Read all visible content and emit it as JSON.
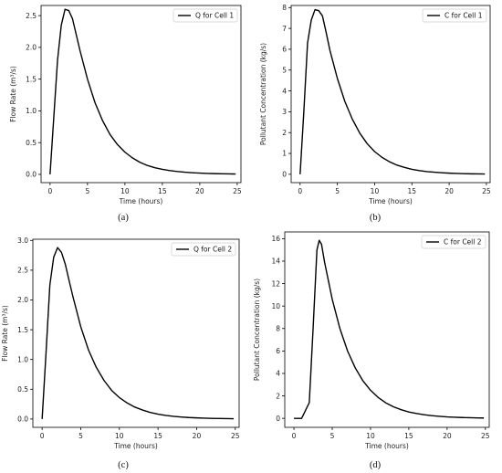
{
  "chart_data": [
    {
      "type": "line",
      "xlabel": "Time (hours)",
      "ylabel": "Flow Rate (m³/s)",
      "xlim": [
        -1.2,
        25.5
      ],
      "ylim": [
        -0.13,
        2.66
      ],
      "xticks": [
        "0",
        "5",
        "10",
        "15",
        "20",
        "25"
      ],
      "yticks": [
        "0.0",
        "0.5",
        "1.0",
        "1.5",
        "2.0",
        "2.5"
      ],
      "legend_position": "top-right",
      "caption": "(a)",
      "series": [
        {
          "name": "Q for Cell 1",
          "x": [
            0,
            0.5,
            1.0,
            1.5,
            2.0,
            2.5,
            3.0,
            3.5,
            4.0,
            5.0,
            6.0,
            7.0,
            8.0,
            9.0,
            10.0,
            11.0,
            12.0,
            13.0,
            14.0,
            15.0,
            16.0,
            17.0,
            18.0,
            19.0,
            20.0,
            21.0,
            22.0,
            23.0,
            24.0,
            24.8
          ],
          "y": [
            0.0,
            0.9,
            1.8,
            2.35,
            2.6,
            2.58,
            2.45,
            2.2,
            1.95,
            1.5,
            1.13,
            0.85,
            0.63,
            0.47,
            0.35,
            0.26,
            0.19,
            0.14,
            0.105,
            0.08,
            0.06,
            0.045,
            0.034,
            0.026,
            0.02,
            0.015,
            0.012,
            0.009,
            0.007,
            0.006
          ]
        }
      ]
    },
    {
      "type": "line",
      "xlabel": "Time (hours)",
      "ylabel": "Pollutant Concentration (kg/s)",
      "xlim": [
        -1.2,
        25.5
      ],
      "ylim": [
        -0.4,
        8.1
      ],
      "xticks": [
        "0",
        "5",
        "10",
        "15",
        "20",
        "25"
      ],
      "yticks": [
        "0",
        "1",
        "2",
        "3",
        "4",
        "5",
        "6",
        "7",
        "8"
      ],
      "legend_position": "top-right",
      "caption": "(b)",
      "series": [
        {
          "name": "C for Cell 1",
          "x": [
            0,
            0.5,
            1.0,
            1.5,
            2.0,
            2.5,
            3.0,
            3.5,
            4.0,
            5.0,
            6.0,
            7.0,
            8.0,
            9.0,
            10.0,
            11.0,
            12.0,
            13.0,
            14.0,
            15.0,
            16.0,
            17.0,
            18.0,
            19.0,
            20.0,
            21.0,
            22.0,
            23.0,
            24.0,
            24.8
          ],
          "y": [
            0.0,
            3.0,
            6.3,
            7.4,
            7.9,
            7.85,
            7.6,
            6.8,
            5.95,
            4.6,
            3.5,
            2.65,
            1.98,
            1.47,
            1.09,
            0.81,
            0.6,
            0.44,
            0.33,
            0.24,
            0.18,
            0.13,
            0.1,
            0.075,
            0.055,
            0.04,
            0.03,
            0.022,
            0.017,
            0.013
          ]
        }
      ]
    },
    {
      "type": "line",
      "xlabel": "Time (hours)",
      "ylabel": "Flow Rate (m³/s)",
      "xlim": [
        -1.2,
        25.5
      ],
      "ylim": [
        -0.14,
        3.02
      ],
      "xticks": [
        "0",
        "5",
        "10",
        "15",
        "20",
        "25"
      ],
      "yticks": [
        "0.0",
        "0.5",
        "1.0",
        "1.5",
        "2.0",
        "2.5",
        "3.0"
      ],
      "legend_position": "top-right",
      "caption": "(c)",
      "series": [
        {
          "name": "Q for Cell 2",
          "x": [
            0,
            0.5,
            1.0,
            1.5,
            2.0,
            2.5,
            3.0,
            3.5,
            4.0,
            5.0,
            6.0,
            7.0,
            8.0,
            9.0,
            10.0,
            11.0,
            12.0,
            13.0,
            14.0,
            15.0,
            16.0,
            17.0,
            18.0,
            19.0,
            20.0,
            21.0,
            22.0,
            23.0,
            24.0,
            24.8
          ],
          "y": [
            0.0,
            1.1,
            2.25,
            2.72,
            2.88,
            2.8,
            2.6,
            2.32,
            2.05,
            1.55,
            1.16,
            0.87,
            0.65,
            0.48,
            0.36,
            0.27,
            0.2,
            0.15,
            0.11,
            0.082,
            0.061,
            0.045,
            0.034,
            0.025,
            0.019,
            0.014,
            0.011,
            0.008,
            0.006,
            0.005
          ]
        }
      ]
    },
    {
      "type": "line",
      "xlabel": "Time (hours)",
      "ylabel": "Pollutant Concentration (kg/s)",
      "xlim": [
        -1.2,
        25.5
      ],
      "ylim": [
        -0.8,
        16.6
      ],
      "xticks": [
        "0",
        "5",
        "10",
        "15",
        "20",
        "25"
      ],
      "yticks": [
        "0",
        "2",
        "4",
        "6",
        "8",
        "10",
        "12",
        "14",
        "16"
      ],
      "legend_position": "top-right",
      "caption": "(d)",
      "series": [
        {
          "name": "C for Cell 2",
          "x": [
            0,
            1.0,
            2.0,
            2.5,
            3.0,
            3.3,
            3.6,
            4.0,
            5.0,
            6.0,
            7.0,
            8.0,
            9.0,
            10.0,
            11.0,
            12.0,
            13.0,
            14.0,
            15.0,
            16.0,
            17.0,
            18.0,
            19.0,
            20.0,
            21.0,
            22.0,
            23.0,
            24.0,
            24.8
          ],
          "y": [
            0.0,
            0.0,
            1.4,
            8.0,
            15.0,
            15.85,
            15.5,
            13.9,
            10.6,
            8.0,
            6.0,
            4.5,
            3.35,
            2.5,
            1.86,
            1.38,
            1.03,
            0.77,
            0.57,
            0.43,
            0.32,
            0.24,
            0.18,
            0.13,
            0.1,
            0.075,
            0.056,
            0.042,
            0.034
          ]
        }
      ]
    }
  ]
}
